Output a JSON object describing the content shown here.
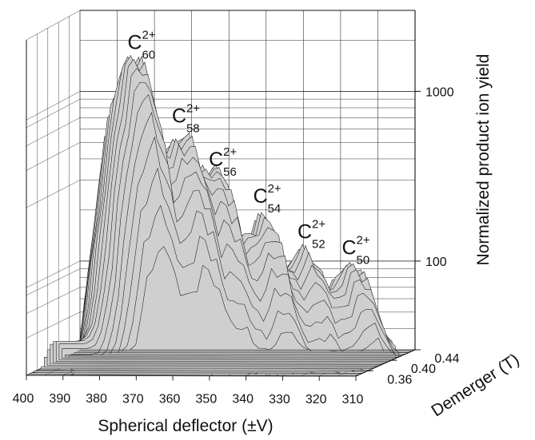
{
  "chart_data": {
    "type": "surface",
    "xlabel": "Spherical deflector (±V)",
    "ylabel": "Demerger (T)",
    "zlabel": "Normalized product ion yield",
    "x_ticks": [
      "400",
      "390",
      "380",
      "370",
      "360",
      "350",
      "340",
      "330",
      "320",
      "310"
    ],
    "y_ticks": [
      "0.36",
      "0.40",
      "0.44"
    ],
    "z_ticks": [
      "100",
      "1000"
    ],
    "z_scale": "log",
    "xlim": [
      400,
      310
    ],
    "ylim": [
      0.34,
      0.44
    ],
    "zlim": [
      30,
      3000
    ],
    "grid": true,
    "peaks": [
      {
        "main": "C",
        "sup": "2+",
        "sub": "60",
        "x": 378,
        "yield": 2000
      },
      {
        "main": "C",
        "sup": "2+",
        "sub": "58",
        "x": 366,
        "yield": 600
      },
      {
        "main": "C",
        "sup": "2+",
        "sub": "56",
        "x": 356,
        "yield": 380
      },
      {
        "main": "C",
        "sup": "2+",
        "sub": "54",
        "x": 344,
        "yield": 170
      },
      {
        "main": "C",
        "sup": "2+",
        "sub": "52",
        "x": 332,
        "yield": 100
      },
      {
        "main": "C",
        "sup": "2+",
        "sub": "50",
        "x": 320,
        "yield": 75
      }
    ]
  }
}
